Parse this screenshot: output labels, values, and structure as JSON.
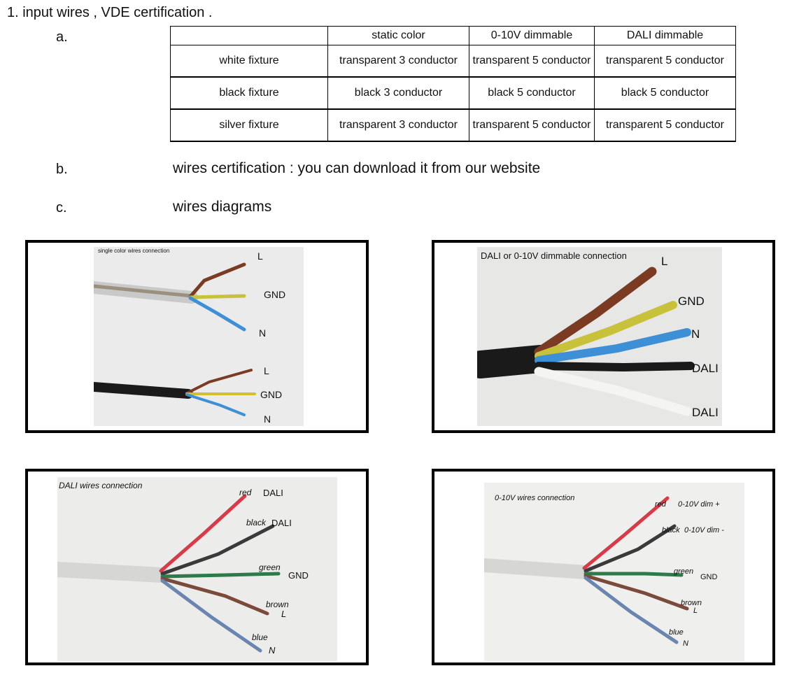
{
  "heading": "1. input wires , VDE  certification .",
  "section_a": {
    "label": "a."
  },
  "table": {
    "columns": [
      "",
      "static color",
      "0-10V dimmable",
      "DALI dimmable"
    ],
    "rows": [
      {
        "name": "white fixture",
        "cells": [
          "transparent  3  conductor",
          "transparent  5  conductor",
          "transparent  5  conductor"
        ]
      },
      {
        "name": "black fixture",
        "cells": [
          "black  3  conductor",
          "black  5  conductor",
          "black  5  conductor"
        ]
      },
      {
        "name": "silver fixture",
        "cells": [
          "transparent  3  conductor",
          "transparent  5  conductor",
          "transparent  5  conductor"
        ]
      }
    ]
  },
  "section_b": {
    "label": "b.",
    "text": "wires  certification :  you can download it from  our  website"
  },
  "section_c": {
    "label": "c.",
    "text": "wires diagrams"
  },
  "diagrams": {
    "single": {
      "caption": "single color wires connection",
      "labels": {
        "l1": "L",
        "gnd1": "GND",
        "n1": "N",
        "l2": "L",
        "gnd2": "GND",
        "n2": "N"
      }
    },
    "dimmable": {
      "caption": "DALI  or  0-10V dimmable connection",
      "labels": {
        "l": "L",
        "gnd": "GND",
        "n": "N",
        "dali1": "DALI",
        "dali2": "DALI"
      }
    },
    "dali": {
      "caption": "DALI  wires connection",
      "labels": {
        "red": "red",
        "red_fn": "DALI",
        "black": "black",
        "black_fn": "DALI",
        "green": "green",
        "green_fn": "GND",
        "brown": "brown",
        "brown_fn": "L",
        "blue": "blue",
        "blue_fn": "N"
      }
    },
    "v010": {
      "caption": "0-10V wires connection",
      "labels": {
        "red": "red",
        "red_fn": "0-10V  dim  +",
        "black": "black",
        "black_fn": "0-10V  dim  -",
        "green": "green",
        "green_fn": "GND",
        "brown": "brown",
        "brown_fn": "L",
        "blue": "blue",
        "blue_fn": "N"
      }
    }
  },
  "colors": {
    "brown": "#7a3b22",
    "yellow_green": "#c8c23a",
    "blue": "#3d8fd6",
    "black": "#1a1a1a",
    "white": "#f4f4f2",
    "red": "#d93a48",
    "green": "#2e7a4a",
    "grey_blue": "#6a86b0"
  }
}
